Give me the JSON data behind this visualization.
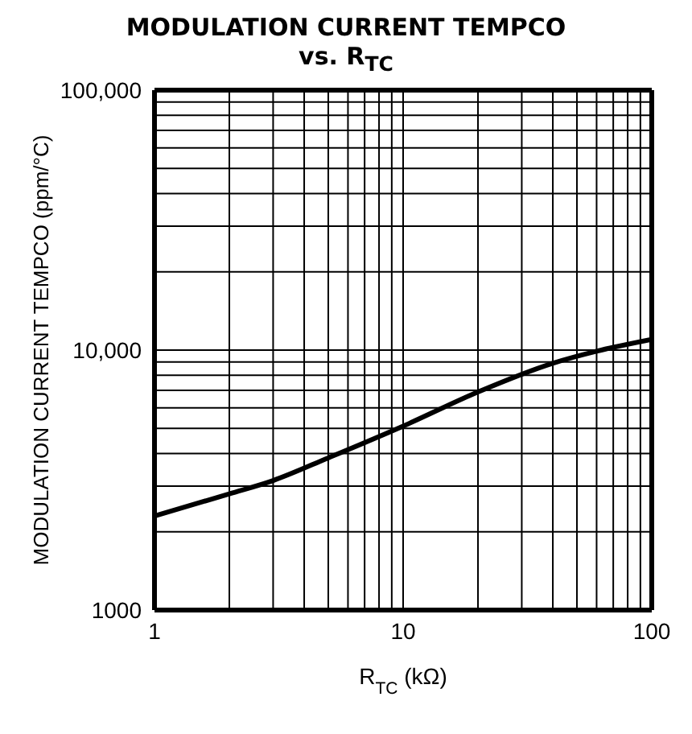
{
  "chart_data": {
    "type": "line",
    "title": "MODULATION CURRENT TEMPCO",
    "subtitle": "vs. R$_{TC}$",
    "xlabel": "R$_{TC}$ (kΩ)",
    "ylabel": "MODULATION CURRENT TEMPCO (ppm/°C)",
    "log": "xy",
    "grid": true,
    "marker": "none",
    "line_style": "solid",
    "x": [
      1,
      2,
      3,
      5,
      10,
      20,
      40,
      60,
      100
    ],
    "series": [
      {
        "color": "#000000",
        "values": [
          2300,
          2800,
          3150,
          3850,
          5100,
          6900,
          8900,
          9900,
          11000
        ]
      }
    ],
    "xlim": [
      1,
      100
    ],
    "ylim": [
      1000,
      100000
    ],
    "xticks": [
      1,
      {
        "value": 2,
        "label": null
      },
      {
        "value": 3,
        "label": null
      },
      {
        "value": 4,
        "label": null
      },
      {
        "value": 5,
        "label": null
      },
      {
        "value": 6,
        "label": null
      },
      {
        "value": 7,
        "label": null
      },
      {
        "value": 8,
        "label": null
      },
      {
        "value": 9,
        "label": null
      },
      10,
      {
        "value": 20,
        "label": null
      },
      {
        "value": 30,
        "label": null
      },
      {
        "value": 40,
        "label": null
      },
      {
        "value": 50,
        "label": null
      },
      {
        "value": 60,
        "label": null
      },
      {
        "value": 70,
        "label": null
      },
      {
        "value": 80,
        "label": null
      },
      {
        "value": 90,
        "label": null
      },
      100
    ],
    "yticks": [
      {
        "value": 1000,
        "label": "1000"
      },
      {
        "value": 2000,
        "label": null
      },
      {
        "value": 3000,
        "label": null
      },
      {
        "value": 4000,
        "label": null
      },
      {
        "value": 5000,
        "label": null
      },
      {
        "value": 6000,
        "label": null
      },
      {
        "value": 7000,
        "label": null
      },
      {
        "value": 8000,
        "label": null
      },
      {
        "value": 9000,
        "label": null
      },
      {
        "value": 10000,
        "label": "10,000"
      },
      {
        "value": 20000,
        "label": null
      },
      {
        "value": 30000,
        "label": null
      },
      {
        "value": 40000,
        "label": null
      },
      {
        "value": 50000,
        "label": null
      },
      {
        "value": 60000,
        "label": null
      },
      {
        "value": 70000,
        "label": null
      },
      {
        "value": 80000,
        "label": null
      },
      {
        "value": 90000,
        "label": null
      },
      {
        "value": 100000,
        "label": "100,000"
      }
    ]
  }
}
